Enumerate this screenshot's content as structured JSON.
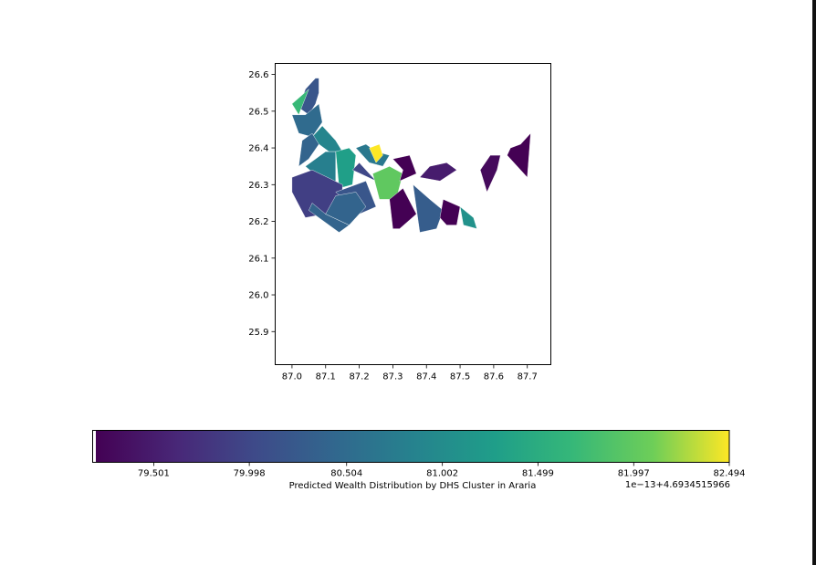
{
  "chart_data": {
    "type": "choropleth",
    "map": {
      "x_ticks": [
        "87.0",
        "87.1",
        "87.2",
        "87.3",
        "87.4",
        "87.5",
        "87.6",
        "87.7"
      ],
      "y_ticks": [
        "25.9",
        "26.0",
        "26.1",
        "26.2",
        "26.3",
        "26.4",
        "26.5",
        "26.6"
      ],
      "xlim": [
        86.95,
        87.77
      ],
      "ylim": [
        25.81,
        26.63
      ],
      "regions": [
        {
          "value": 80.2,
          "lon": [
            87.04,
            87.07,
            87.08,
            87.08,
            87.07,
            87.05,
            87.02
          ],
          "lat": [
            26.56,
            26.59,
            26.59,
            26.55,
            26.52,
            26.49,
            26.51
          ]
        },
        {
          "value": 81.7,
          "lon": [
            87.0,
            87.05,
            87.02
          ],
          "lat": [
            26.52,
            26.56,
            26.49
          ]
        },
        {
          "value": 80.5,
          "lon": [
            87.0,
            87.04,
            87.08,
            87.09,
            87.06,
            87.02
          ],
          "lat": [
            26.49,
            26.49,
            26.52,
            26.47,
            26.43,
            26.44
          ]
        },
        {
          "value": 80.9,
          "lon": [
            87.06,
            87.09,
            87.13,
            87.15,
            87.11,
            87.08
          ],
          "lat": [
            26.43,
            26.46,
            26.42,
            26.39,
            26.39,
            26.41
          ]
        },
        {
          "value": 80.4,
          "lon": [
            87.03,
            87.06,
            87.08,
            87.05,
            87.02
          ],
          "lat": [
            26.42,
            26.44,
            26.41,
            26.37,
            26.35
          ]
        },
        {
          "value": 80.8,
          "lon": [
            87.04,
            87.1,
            87.13,
            87.13,
            87.09
          ],
          "lat": [
            26.35,
            26.39,
            26.39,
            26.3,
            26.31
          ]
        },
        {
          "value": 81.3,
          "lon": [
            87.13,
            87.17,
            87.19,
            87.18,
            87.14
          ],
          "lat": [
            26.39,
            26.4,
            26.38,
            26.3,
            26.29
          ]
        },
        {
          "value": 80.7,
          "lon": [
            87.19,
            87.22,
            87.25,
            87.29,
            87.27,
            87.23
          ],
          "lat": [
            26.4,
            26.41,
            26.39,
            26.38,
            26.35,
            26.36
          ]
        },
        {
          "value": 82.5,
          "lon": [
            87.23,
            87.26,
            87.27,
            87.25
          ],
          "lat": [
            26.4,
            26.41,
            26.38,
            26.36
          ]
        },
        {
          "value": 80.0,
          "lon": [
            87.18,
            87.25,
            87.2
          ],
          "lat": [
            26.34,
            26.31,
            26.36
          ]
        },
        {
          "value": 82.0,
          "lon": [
            87.24,
            87.29,
            87.33,
            87.31,
            87.26
          ],
          "lat": [
            26.33,
            26.35,
            26.33,
            26.26,
            26.26
          ]
        },
        {
          "value": 79.2,
          "lon": [
            87.3,
            87.33,
            87.32,
            87.37,
            87.35
          ],
          "lat": [
            26.37,
            26.34,
            26.31,
            26.33,
            26.38
          ]
        },
        {
          "value": 79.9,
          "lon": [
            87.0,
            87.0,
            87.04,
            87.15,
            87.15,
            87.06
          ],
          "lat": [
            26.32,
            26.28,
            26.21,
            26.23,
            26.3,
            26.34
          ]
        },
        {
          "value": 80.2,
          "lon": [
            87.13,
            87.22,
            87.25,
            87.2
          ],
          "lat": [
            26.28,
            26.31,
            26.24,
            26.22
          ]
        },
        {
          "value": 80.4,
          "lon": [
            87.05,
            87.14,
            87.17,
            87.1,
            87.06
          ],
          "lat": [
            26.23,
            26.17,
            26.19,
            26.22,
            26.25
          ]
        },
        {
          "value": 80.4,
          "lon": [
            87.1,
            87.17,
            87.22,
            87.19,
            87.13
          ],
          "lat": [
            26.22,
            26.19,
            26.24,
            26.28,
            26.27
          ]
        },
        {
          "value": 79.2,
          "lon": [
            87.29,
            87.3,
            87.32,
            87.37,
            87.33
          ],
          "lat": [
            26.26,
            26.18,
            26.18,
            26.22,
            26.29
          ]
        },
        {
          "value": 80.3,
          "lon": [
            87.36,
            87.41,
            87.45,
            87.43,
            87.38
          ],
          "lat": [
            26.3,
            26.26,
            26.23,
            26.18,
            26.17
          ]
        },
        {
          "value": 79.5,
          "lon": [
            87.38,
            87.41,
            87.46,
            87.49,
            87.44
          ],
          "lat": [
            26.32,
            26.35,
            26.36,
            26.34,
            26.31
          ]
        },
        {
          "value": 79.2,
          "lon": [
            87.44,
            87.46,
            87.49,
            87.5,
            87.45
          ],
          "lat": [
            26.21,
            26.19,
            26.19,
            26.24,
            26.26
          ]
        },
        {
          "value": 81.1,
          "lon": [
            87.5,
            87.54,
            87.55,
            87.51
          ],
          "lat": [
            26.24,
            26.21,
            26.18,
            26.19
          ]
        },
        {
          "value": 79.3,
          "lon": [
            87.56,
            87.59,
            87.62,
            87.61,
            87.58
          ],
          "lat": [
            26.34,
            26.38,
            26.38,
            26.34,
            26.28
          ]
        },
        {
          "value": 79.2,
          "lon": [
            87.64,
            87.65,
            87.68,
            87.71,
            87.7
          ],
          "lat": [
            26.38,
            26.4,
            26.41,
            26.44,
            26.32
          ]
        }
      ]
    },
    "colorbar": {
      "ticks": [
        "79.501",
        "79.998",
        "80.504",
        "81.002",
        "81.499",
        "81.997",
        "82.494"
      ],
      "offset_label": "1e−13+4.6934515966",
      "label": "Predicted Wealth Distribution by DHS Cluster in Araria",
      "colormap": "viridis",
      "stops": [
        "#440154",
        "#3b528b",
        "#21918c",
        "#5ec962",
        "#fde725"
      ]
    }
  }
}
